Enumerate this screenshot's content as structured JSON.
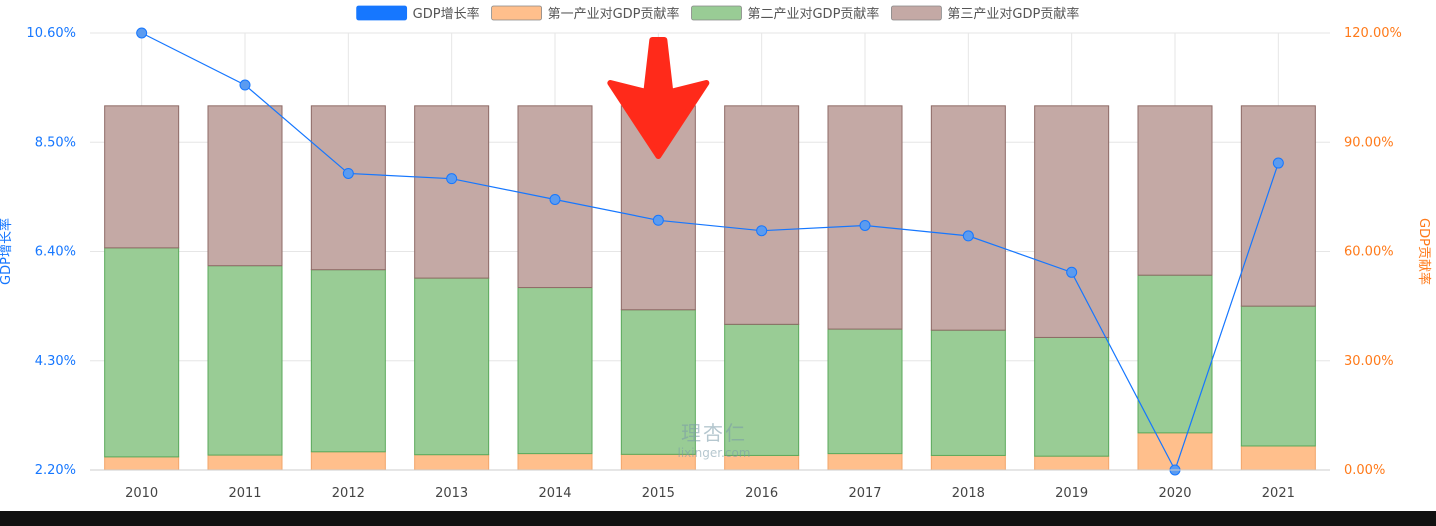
{
  "chart_data": {
    "type": "bar",
    "bar_layout": "stacked",
    "categories": [
      "2010",
      "2011",
      "2012",
      "2013",
      "2014",
      "2015",
      "2016",
      "2017",
      "2018",
      "2019",
      "2020",
      "2021"
    ],
    "series": [
      {
        "name": "GDP增长率",
        "type": "line",
        "axis": "left",
        "color": "#1677ff",
        "values": [
          10.6,
          9.6,
          7.9,
          7.8,
          7.4,
          7.0,
          6.8,
          6.9,
          6.7,
          6.0,
          2.2,
          8.1
        ]
      },
      {
        "name": "第一产业对GDP贡献率",
        "type": "bar",
        "axis": "right",
        "color": "#ffbf8c",
        "values": [
          3.6,
          4.1,
          5.0,
          4.2,
          4.5,
          4.3,
          4.0,
          4.5,
          4.0,
          3.8,
          10.2,
          6.6
        ]
      },
      {
        "name": "第二产业对GDP贡献率",
        "type": "bar",
        "axis": "right",
        "color": "#99cc95",
        "values": [
          57.4,
          52.0,
          50.0,
          48.5,
          45.6,
          39.7,
          36.0,
          34.2,
          34.4,
          32.6,
          43.3,
          38.4
        ]
      },
      {
        "name": "第三产业对GDP贡献率",
        "type": "bar",
        "axis": "right",
        "color": "#c4a9a5",
        "values": [
          39.0,
          43.9,
          45.0,
          47.3,
          49.9,
          56.0,
          60.0,
          61.3,
          61.6,
          63.6,
          46.5,
          55.0
        ]
      }
    ],
    "y_left": {
      "label": "GDP增长率",
      "ylim": [
        2.2,
        10.6
      ],
      "ticks": [
        "2.20%",
        "4.30%",
        "6.40%",
        "8.50%",
        "10.60%"
      ]
    },
    "y_right": {
      "label": "GDP贡献率",
      "ylim": [
        0,
        120
      ],
      "ticks": [
        "0.00%",
        "30.00%",
        "60.00%",
        "90.00%",
        "120.00%"
      ]
    },
    "legend_position": "top-center",
    "grid": true
  },
  "watermark": {
    "text_cn": "理杏仁",
    "text_en": "lixinger.com"
  },
  "annotation": {
    "type": "arrow",
    "color": "#ff2a1a",
    "target_category": "2015"
  },
  "colors": {
    "grid": "#e6e6e6",
    "bar_stroke_1": "#f2a56a",
    "bar_stroke_2": "#5aa95a",
    "bar_stroke_3": "#8e6a66"
  }
}
